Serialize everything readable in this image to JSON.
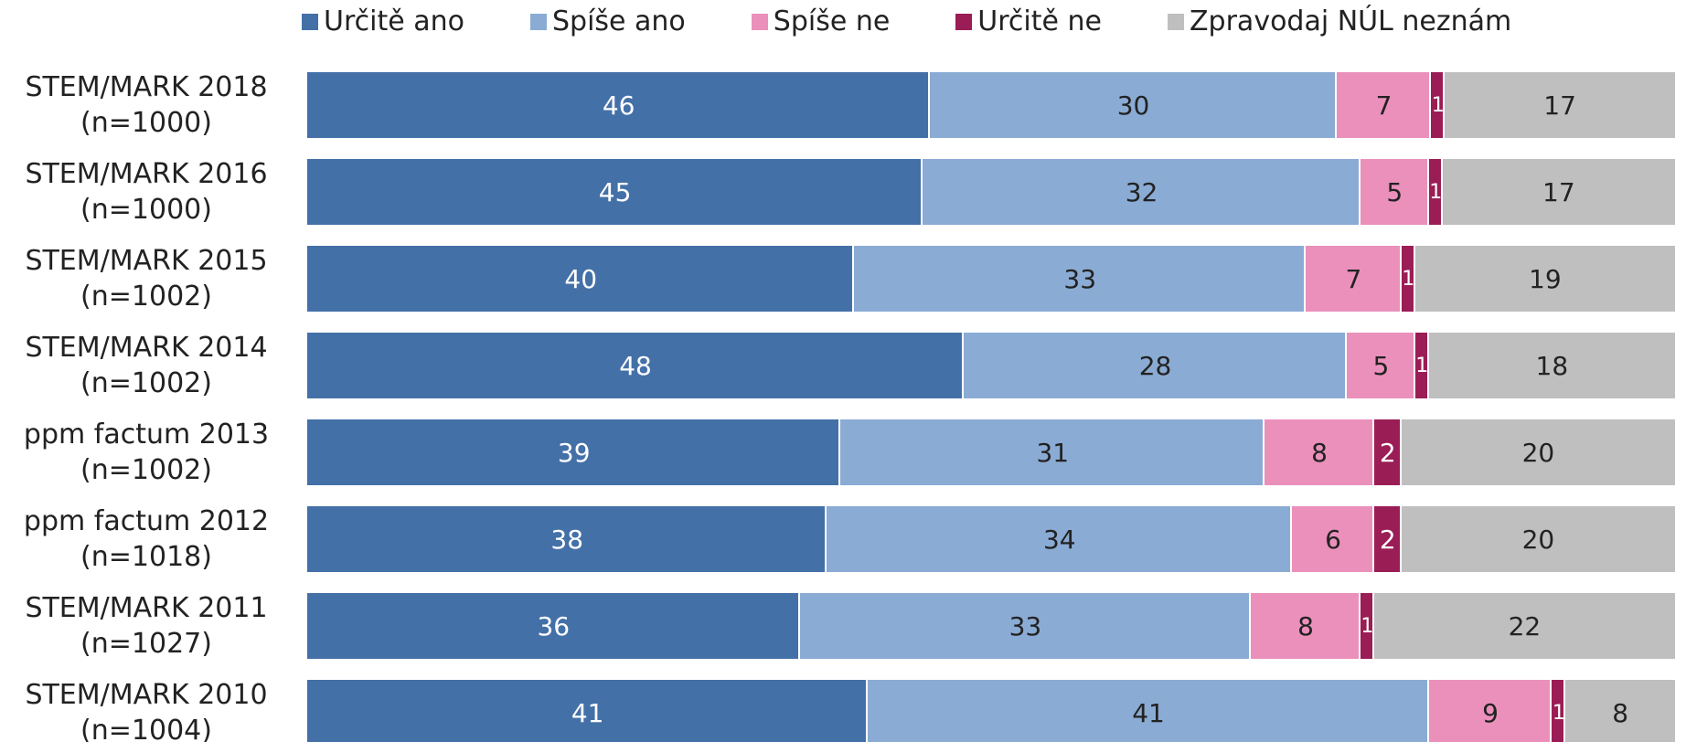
{
  "chart_data": {
    "type": "stacked-bar-horizontal",
    "stacking": "percent",
    "categories": [
      "STEM/MARK 2018\n(n=1000)",
      "STEM/MARK 2016\n(n=1000)",
      "STEM/MARK 2015\n(n=1002)",
      "STEM/MARK 2014\n(n=1002)",
      "ppm factum 2013\n(n=1002)",
      "ppm factum 2012\n(n=1018)",
      "STEM/MARK 2011\n(n=1027)",
      "STEM/MARK 2010\n(n=1004)"
    ],
    "series": [
      {
        "name": "Určitě ano",
        "color": "#4470a8",
        "label_color": "#ffffff",
        "values": [
          46,
          45,
          40,
          48,
          39,
          38,
          36,
          41
        ]
      },
      {
        "name": "Spíše ano",
        "color": "#8aabd4",
        "label_color": "#222222",
        "values": [
          30,
          32,
          33,
          28,
          31,
          34,
          33,
          41
        ]
      },
      {
        "name": "Spíše ne",
        "color": "#ea90bb",
        "label_color": "#222222",
        "values": [
          7,
          5,
          7,
          5,
          8,
          6,
          8,
          9
        ]
      },
      {
        "name": "Určitě ne",
        "color": "#9b1d55",
        "label_color": "#ffffff",
        "values": [
          1,
          1,
          1,
          1,
          2,
          2,
          1,
          1
        ]
      },
      {
        "name": "Zpravodaj NÚL neznám",
        "color": "#bfbfbf",
        "label_color": "#222222",
        "values": [
          17,
          17,
          19,
          18,
          20,
          20,
          22,
          8
        ]
      }
    ],
    "legend": "top"
  }
}
